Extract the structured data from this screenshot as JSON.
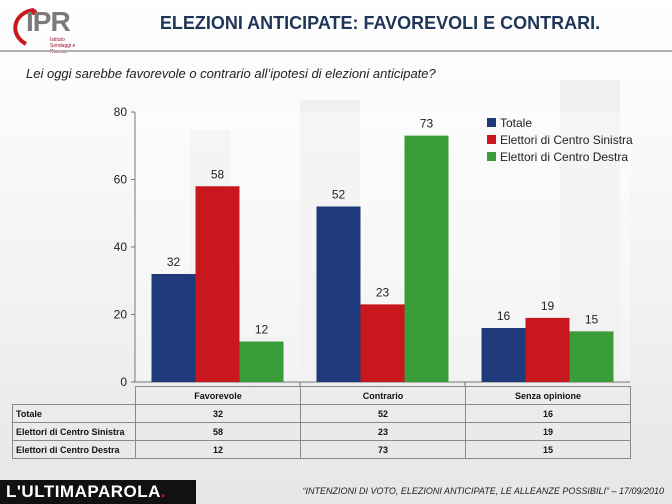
{
  "header": {
    "logo_text": "IPR",
    "logo_sub": "Istituto Sondaggi e Ricerca",
    "title": "ELEZIONI ANTICIPATE: FAVOREVOLI E CONTRARI."
  },
  "question": "Lei oggi sarebbe favorevole o contrario all’ipotesi di elezioni anticipate?",
  "chart_data": {
    "type": "bar",
    "title": "",
    "xlabel": "",
    "ylabel": "",
    "categories": [
      "Favorevole",
      "Contrario",
      "Senza opinione"
    ],
    "series": [
      {
        "name": "Totale",
        "values": [
          32,
          52,
          16
        ],
        "color": "#1f3a7a"
      },
      {
        "name": "Elettori di Centro Sinistra",
        "values": [
          58,
          23,
          19
        ],
        "color": "#c8171d"
      },
      {
        "name": "Elettori di Centro Destra",
        "values": [
          12,
          73,
          15
        ],
        "color": "#3a9d3a"
      }
    ],
    "ylim": [
      0,
      80
    ],
    "yticks": [
      0,
      20,
      40,
      60,
      80
    ],
    "grid": false,
    "legend": "top-right",
    "data_table": true
  },
  "footer": {
    "brand_a": "L'ULTIMAPAROLA",
    "brand_b": ".",
    "note": "“INTENZIONI DI VOTO, ELEZIONI ANTICIPATE, LE ALLEANZE  POSSIBILI” – 17/09/2010"
  }
}
